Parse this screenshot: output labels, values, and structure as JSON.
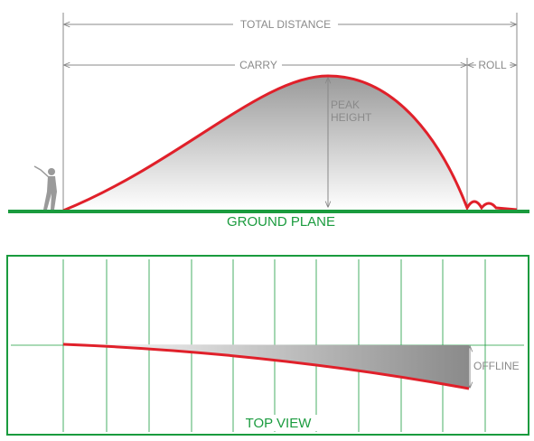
{
  "labels": {
    "total_distance": "TOTAL DISTANCE",
    "carry": "CARRY",
    "roll": "ROLL",
    "peak_height": [
      "PEAK",
      "HEIGHT"
    ],
    "ground_plane": "GROUND PLANE",
    "offline": "OFFLINE",
    "top_view": "TOP VIEW"
  }
}
